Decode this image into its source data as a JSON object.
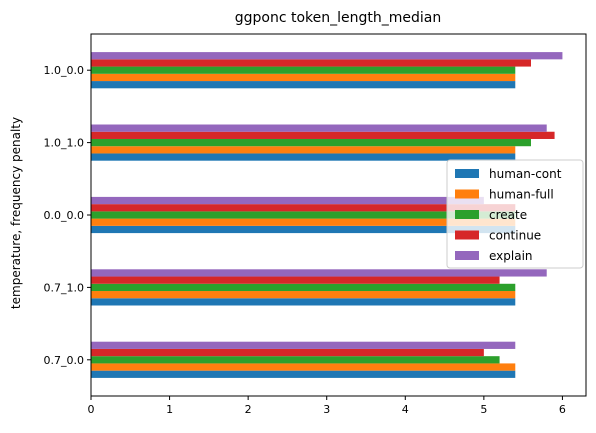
{
  "chart_data": {
    "type": "bar",
    "orientation": "horizontal",
    "title": "ggponc token_length_median",
    "xlabel": "",
    "ylabel": "temperature, frequency penalty",
    "categories": [
      "0.7_0.0",
      "0.7_1.0",
      "0.0_0.0",
      "1.0_1.0",
      "1.0_0.0"
    ],
    "series": [
      {
        "name": "human-cont",
        "color": "#1f77b4",
        "values": [
          5.4,
          5.4,
          5.4,
          5.4,
          5.4
        ]
      },
      {
        "name": "human-full",
        "color": "#ff7f0e",
        "values": [
          5.4,
          5.4,
          5.4,
          5.4,
          5.4
        ]
      },
      {
        "name": "create",
        "color": "#2ca02c",
        "values": [
          5.2,
          5.4,
          5.4,
          5.6,
          5.4
        ]
      },
      {
        "name": "continue",
        "color": "#d62728",
        "values": [
          5.0,
          5.2,
          5.4,
          5.9,
          5.6
        ]
      },
      {
        "name": "explain",
        "color": "#9467bd",
        "values": [
          5.4,
          5.8,
          5.0,
          5.8,
          6.0
        ]
      }
    ],
    "xlim": [
      0,
      6.3
    ],
    "xticks": [
      0,
      1,
      2,
      3,
      4,
      5,
      6
    ],
    "grid": false,
    "legend_position": "center-right"
  }
}
